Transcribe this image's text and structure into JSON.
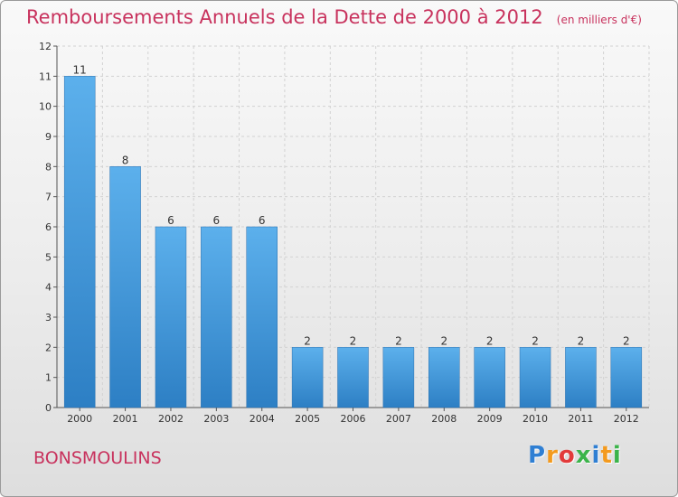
{
  "chart_data": {
    "type": "bar",
    "title": "Remboursements Annuels de la Dette de 2000 à 2012",
    "unit_note": "(en milliers d'€)",
    "categories": [
      "2000",
      "2001",
      "2002",
      "2003",
      "2004",
      "2005",
      "2006",
      "2007",
      "2008",
      "2009",
      "2010",
      "2011",
      "2012"
    ],
    "values": [
      11,
      8,
      6,
      6,
      6,
      2,
      2,
      2,
      2,
      2,
      2,
      2,
      2
    ],
    "ylim": [
      0,
      12
    ],
    "yticks": [
      0,
      1,
      2,
      3,
      4,
      5,
      6,
      7,
      8,
      9,
      10,
      11,
      12
    ],
    "grid": true,
    "bar_color": "#4f9fdc",
    "title_color": "#c8325d"
  },
  "commune": "BONSMOULINS",
  "logo": {
    "letters": [
      "P",
      "r",
      "o",
      "x",
      "i",
      "t",
      "i"
    ],
    "colors": [
      "#2f7fd3",
      "#f39a1e",
      "#e23b3b",
      "#3bb44a",
      "#2f7fd3",
      "#f39a1e",
      "#3bb44a"
    ]
  }
}
